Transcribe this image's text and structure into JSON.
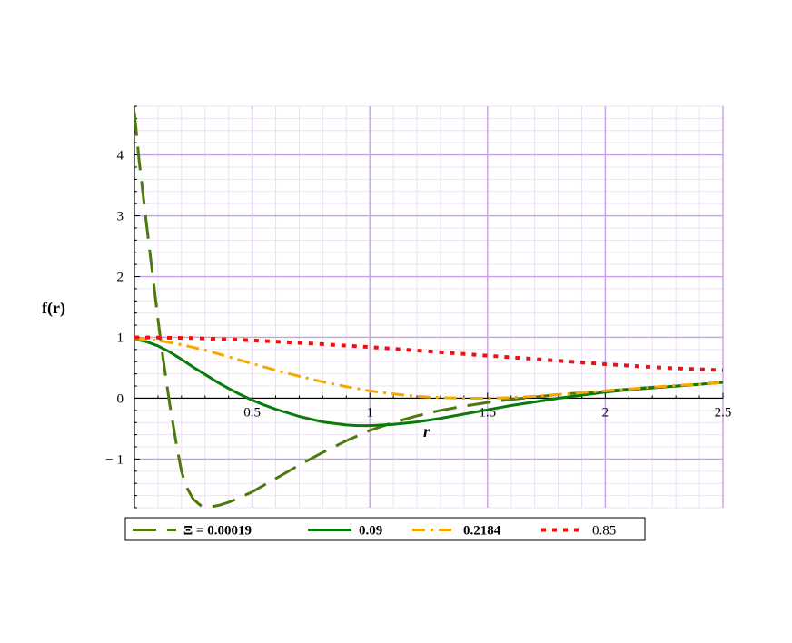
{
  "chart_data": {
    "type": "line",
    "title": "",
    "xlabel": "r",
    "ylabel": "f(r)",
    "xlim": [
      0,
      2.5
    ],
    "ylim": [
      -1.8,
      4.8
    ],
    "grid": true,
    "legend_placement": "bottom",
    "x_ticks": [
      "0.5",
      "1",
      "1.5",
      "2",
      "2.5"
    ],
    "x_tick_values": [
      0.5,
      1,
      1.5,
      2,
      2.5
    ],
    "y_ticks": [
      "− 1",
      "0",
      "1",
      "2",
      "3",
      "4"
    ],
    "y_tick_values": [
      -1,
      0,
      1,
      2,
      3,
      4
    ],
    "legend_prefix": "Ξ = ",
    "series": [
      {
        "name": "0.00019",
        "color": "#4e7a0d",
        "style": "longdash",
        "x": [
          0.0,
          0.02,
          0.05,
          0.08,
          0.1,
          0.12,
          0.15,
          0.18,
          0.2,
          0.22,
          0.25,
          0.28,
          0.3,
          0.33,
          0.36,
          0.4,
          0.45,
          0.5,
          0.6,
          0.7,
          0.8,
          0.9,
          1.0,
          1.1,
          1.2,
          1.3,
          1.4,
          1.5,
          1.6,
          1.7,
          1.8,
          1.9,
          2.0,
          2.1,
          2.2,
          2.3,
          2.4,
          2.5
        ],
        "y": [
          4.7,
          3.9,
          2.9,
          1.95,
          1.3,
          0.7,
          -0.1,
          -0.8,
          -1.2,
          -1.45,
          -1.66,
          -1.76,
          -1.78,
          -1.78,
          -1.76,
          -1.71,
          -1.63,
          -1.54,
          -1.32,
          -1.1,
          -0.89,
          -0.7,
          -0.53,
          -0.4,
          -0.29,
          -0.2,
          -0.13,
          -0.07,
          -0.02,
          0.02,
          0.06,
          0.09,
          0.12,
          0.15,
          0.18,
          0.2,
          0.23,
          0.26
        ]
      },
      {
        "name": "0.09",
        "color": "#0a7a0a",
        "style": "solid",
        "x": [
          0.0,
          0.05,
          0.1,
          0.15,
          0.2,
          0.25,
          0.3,
          0.35,
          0.4,
          0.45,
          0.5,
          0.55,
          0.6,
          0.7,
          0.8,
          0.9,
          0.95,
          1.0,
          1.1,
          1.2,
          1.3,
          1.4,
          1.5,
          1.6,
          1.7,
          1.8,
          1.9,
          2.0,
          2.1,
          2.2,
          2.3,
          2.4,
          2.5
        ],
        "y": [
          0.97,
          0.93,
          0.86,
          0.76,
          0.64,
          0.51,
          0.39,
          0.27,
          0.16,
          0.06,
          -0.03,
          -0.11,
          -0.18,
          -0.3,
          -0.39,
          -0.44,
          -0.45,
          -0.45,
          -0.43,
          -0.39,
          -0.33,
          -0.26,
          -0.19,
          -0.12,
          -0.06,
          0.0,
          0.05,
          0.1,
          0.14,
          0.17,
          0.2,
          0.23,
          0.26
        ]
      },
      {
        "name": "0.2184",
        "color": "#f5a800",
        "style": "dashdot",
        "x": [
          0.0,
          0.1,
          0.2,
          0.3,
          0.4,
          0.5,
          0.6,
          0.7,
          0.8,
          0.9,
          1.0,
          1.1,
          1.2,
          1.3,
          1.4,
          1.5,
          1.6,
          1.7,
          1.8,
          1.9,
          2.0,
          2.1,
          2.2,
          2.3,
          2.4,
          2.5
        ],
        "y": [
          0.98,
          0.95,
          0.88,
          0.79,
          0.68,
          0.57,
          0.46,
          0.36,
          0.27,
          0.19,
          0.12,
          0.07,
          0.03,
          0.01,
          0.0,
          0.0,
          0.01,
          0.03,
          0.06,
          0.09,
          0.12,
          0.15,
          0.18,
          0.21,
          0.23,
          0.26
        ]
      },
      {
        "name": "0.85",
        "color": "#ee1111",
        "style": "dotted",
        "x": [
          0.0,
          0.25,
          0.5,
          0.75,
          1.0,
          1.25,
          1.5,
          1.75,
          2.0,
          2.25,
          2.5
        ],
        "y": [
          1.0,
          0.99,
          0.95,
          0.9,
          0.84,
          0.77,
          0.7,
          0.63,
          0.56,
          0.5,
          0.46
        ]
      }
    ]
  }
}
